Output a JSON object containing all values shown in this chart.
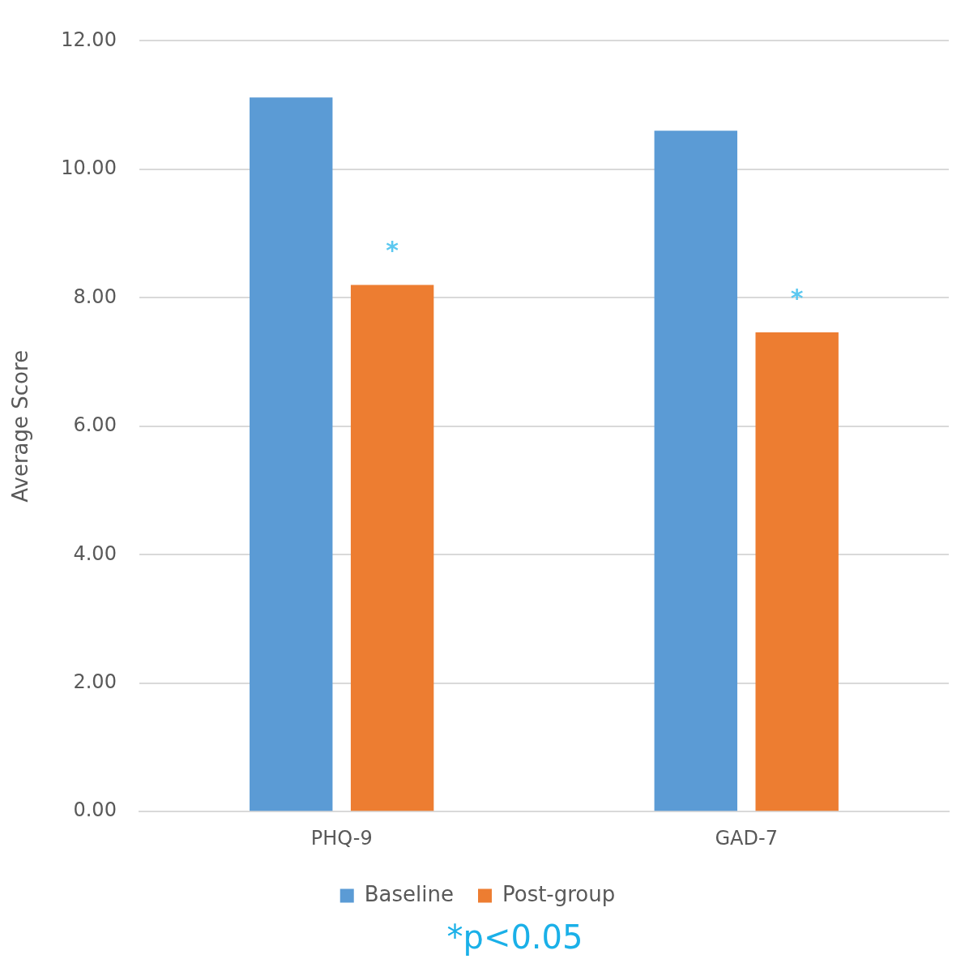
{
  "chart_data": {
    "type": "bar",
    "ylabel": "Average Score",
    "categories": [
      "PHQ-9",
      "GAD-7"
    ],
    "series": [
      {
        "name": "Baseline",
        "color": "#5b9bd5",
        "values": [
          11.12,
          10.6
        ]
      },
      {
        "name": "Post-group",
        "color": "#ed7d31",
        "values": [
          8.2,
          7.46
        ]
      }
    ],
    "ylim": [
      0,
      12
    ],
    "yticks": [
      {
        "value": 0,
        "label": "0.00"
      },
      {
        "value": 2,
        "label": "2.00"
      },
      {
        "value": 4,
        "label": "4.00"
      },
      {
        "value": 6,
        "label": "6.00"
      },
      {
        "value": 8,
        "label": "8.00"
      },
      {
        "value": 10,
        "label": "10.00"
      },
      {
        "value": 12,
        "label": "12.00"
      }
    ],
    "grid": "y",
    "legend": "bottom",
    "annotations": [
      "*",
      "*",
      "*p<0.05"
    ]
  }
}
